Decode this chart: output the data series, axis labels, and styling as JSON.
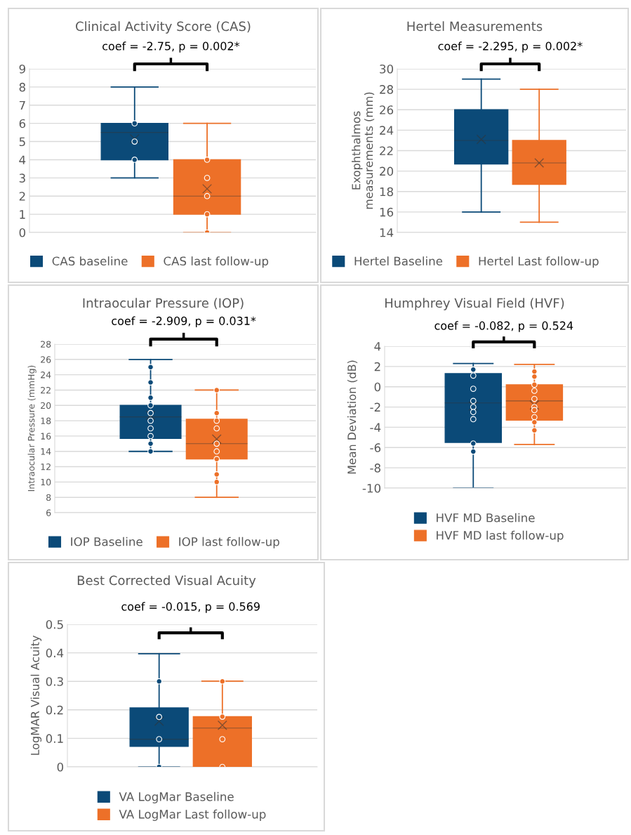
{
  "chart_data": [
    {
      "type": "box",
      "title": "Clinical Activity Score (CAS)",
      "annotations": [
        "coef = -2.75, p = 0.002*"
      ],
      "categories": [
        null,
        null
      ],
      "ylim": [
        0,
        9
      ],
      "yticks": [
        0,
        1,
        2,
        3,
        4,
        5,
        6,
        7,
        8,
        9
      ],
      "grid": "y",
      "legend": "bottom",
      "marker": "circle",
      "series": [
        {
          "name": "CAS baseline",
          "type": "box",
          "color": "#0b4a78",
          "boxes": [
            {
              "low": 3,
              "q1": 4,
              "median": 5.5,
              "q3": 6,
              "high": 8,
              "mean": 5.15,
              "outliers": [
                6,
                5,
                4
              ]
            },
            null
          ]
        },
        {
          "name": "CAS last follow-up",
          "type": "box",
          "color": "#ed7028",
          "boxes": [
            null,
            {
              "low": 0,
              "q1": 1,
              "median": 2,
              "q3": 4,
              "high": 6,
              "mean": 2.4,
              "outliers": [
                4,
                3,
                2,
                1,
                0
              ]
            }
          ]
        }
      ]
    },
    {
      "type": "box",
      "title": "Hertel Measurements",
      "ylabel": "Exophthalmos\nmeasurements (mm)",
      "annotations": [
        "coef = -2.295, p = 0.002*"
      ],
      "categories": [
        null,
        null
      ],
      "ylim": [
        14,
        30
      ],
      "yticks": [
        14,
        16,
        18,
        20,
        22,
        24,
        26,
        28,
        30
      ],
      "grid": "y",
      "legend": "bottom",
      "series": [
        {
          "name": "Hertel Baseline",
          "type": "box",
          "color": "#0b4a78",
          "boxes": [
            {
              "low": 16,
              "q1": 20.7,
              "median": 23,
              "q3": 26,
              "high": 29,
              "mean": 23.1
            },
            null
          ]
        },
        {
          "name": "Hertel Last follow-up",
          "type": "box",
          "color": "#ed7028",
          "boxes": [
            null,
            {
              "low": 15,
              "q1": 18.7,
              "median": 20.8,
              "q3": 23,
              "high": 28,
              "mean": 20.8
            }
          ]
        }
      ]
    },
    {
      "type": "box",
      "title": "Intraocular Pressure (IOP)",
      "ylabel": "Intraocular Pressure (mmHg)",
      "annotations": [
        "coef = -2.909, p = 0.031*"
      ],
      "categories": [
        null,
        null
      ],
      "ylim": [
        6,
        28
      ],
      "yticks": [
        6,
        8,
        10,
        12,
        14,
        16,
        18,
        20,
        22,
        24,
        26,
        28
      ],
      "grid": "y",
      "legend": "bottom",
      "marker": "circle",
      "series": [
        {
          "name": "IOP Baseline",
          "type": "box",
          "color": "#0b4a78",
          "boxes": [
            {
              "low": 14,
              "q1": 15.7,
              "median": 18.5,
              "q3": 20,
              "high": 26,
              "mean": 18.7,
              "outliers": [
                25,
                23,
                21,
                20,
                19,
                18,
                17,
                16,
                15,
                14
              ]
            },
            null
          ]
        },
        {
          "name": "IOP last follow-up",
          "type": "box",
          "color": "#ed7028",
          "boxes": [
            null,
            {
              "low": 8,
              "q1": 13,
              "median": 15,
              "q3": 18.2,
              "high": 22,
              "mean": 15.6,
              "outliers": [
                22,
                19,
                18,
                17,
                15,
                14,
                13,
                11,
                10
              ]
            }
          ]
        }
      ]
    },
    {
      "type": "box",
      "title": "Humphrey Visual Field (HVF)",
      "ylabel": "Mean Deviation (dB)",
      "annotations": [
        "coef = -0.082, p = 0.524"
      ],
      "categories": [
        null,
        null
      ],
      "ylim": [
        -10,
        4
      ],
      "yticks": [
        -10,
        -8,
        -6,
        -4,
        -2,
        0,
        2,
        4
      ],
      "grid": "y",
      "legend": "bottom left",
      "marker": "circle",
      "series": [
        {
          "name": "HVF MD Baseline",
          "type": "box",
          "color": "#0b4a78",
          "boxes": [
            {
              "low": -10,
              "q1": -5.5,
              "median": -1.6,
              "q3": 1.3,
              "high": 2.3,
              "mean": -1.9,
              "outliers": [
                1.7,
                1.1,
                -0.2,
                -1.4,
                -2.0,
                -2.5,
                -3.2,
                -5.6,
                -6.4
              ]
            },
            null
          ]
        },
        {
          "name": "HVF MD last follow-up",
          "type": "box",
          "color": "#ed7028",
          "boxes": [
            null,
            {
              "low": -5.7,
              "q1": -3.3,
              "median": -1.4,
              "q3": 0.2,
              "high": 2.2,
              "mean": -1.8,
              "outliers": [
                1.5,
                1.0,
                0.2,
                -0.4,
                -1.2,
                -2.0,
                -2.3,
                -3.0,
                -3.5,
                -4.3
              ]
            }
          ]
        }
      ]
    },
    {
      "type": "box",
      "title": "Best Corrected Visual Acuity",
      "ylabel": "LogMAR Visual Acuity",
      "annotations": [
        "coef = -0.015, p = 0.569"
      ],
      "categories": [
        null,
        null
      ],
      "ylim": [
        0,
        0.5
      ],
      "yticks": [
        {
          "value": 0,
          "label": "0"
        },
        0.1,
        0.2,
        0.3,
        0.4,
        0.5
      ],
      "grid": "y",
      "legend": "bottom left",
      "marker": "circle",
      "series": [
        {
          "name": "VA LogMar Baseline",
          "type": "box",
          "color": "#0b4a78",
          "boxes": [
            {
              "low": 0,
              "q1": 0.072,
              "median": 0.097,
              "q3": 0.207,
              "high": 0.397,
              "mean": 0.16,
              "outliers": [
                0.3,
                0.175,
                0.097,
                0
              ]
            },
            null
          ]
        },
        {
          "name": "VA LogMar Last follow-up",
          "type": "box",
          "color": "#ed7028",
          "boxes": [
            null,
            {
              "low": 0,
              "q1": 0,
              "median": 0.136,
              "q3": 0.176,
              "high": 0.301,
              "mean": 0.146,
              "outliers": [
                0.3,
                0.176,
                0.097,
                0
              ]
            }
          ]
        }
      ]
    }
  ]
}
